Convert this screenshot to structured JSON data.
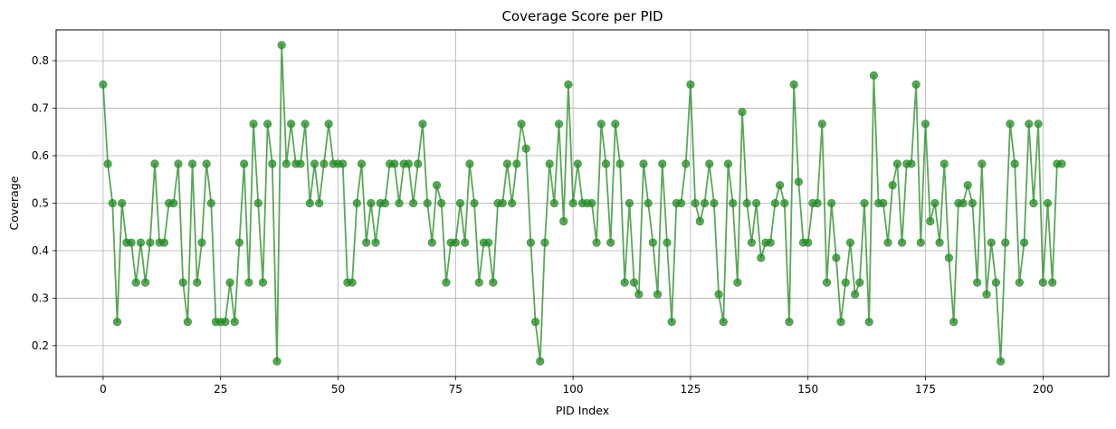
{
  "chart_data": {
    "type": "line",
    "title": "Coverage Score per PID",
    "xlabel": "PID Index",
    "ylabel": "Coverage",
    "xlim": [
      -10,
      214
    ],
    "ylim": [
      0.135,
      0.865
    ],
    "xticks": [
      0,
      25,
      50,
      75,
      100,
      125,
      150,
      175,
      200
    ],
    "yticks": [
      0.2,
      0.3,
      0.4,
      0.5,
      0.6,
      0.7,
      0.8
    ],
    "xtick_labels": [
      "0",
      "25",
      "50",
      "75",
      "100",
      "125",
      "150",
      "175",
      "200"
    ],
    "ytick_labels": [
      "0.2",
      "0.3",
      "0.4",
      "0.5",
      "0.6",
      "0.7",
      "0.8"
    ],
    "grid": true,
    "color": "#228B22",
    "markers": true,
    "x_start": 0,
    "values": [
      0.75,
      0.583,
      0.5,
      0.25,
      0.5,
      0.417,
      0.417,
      0.333,
      0.417,
      0.333,
      0.417,
      0.583,
      0.417,
      0.417,
      0.5,
      0.5,
      0.583,
      0.333,
      0.25,
      0.583,
      0.333,
      0.417,
      0.583,
      0.5,
      0.25,
      0.25,
      0.25,
      0.333,
      0.25,
      0.417,
      0.583,
      0.333,
      0.667,
      0.5,
      0.333,
      0.667,
      0.583,
      0.167,
      0.833,
      0.583,
      0.667,
      0.583,
      0.583,
      0.667,
      0.5,
      0.583,
      0.5,
      0.583,
      0.667,
      0.583,
      0.583,
      0.583,
      0.333,
      0.333,
      0.5,
      0.583,
      0.417,
      0.5,
      0.417,
      0.5,
      0.5,
      0.583,
      0.583,
      0.5,
      0.583,
      0.583,
      0.5,
      0.583,
      0.667,
      0.5,
      0.417,
      0.538,
      0.5,
      0.333,
      0.417,
      0.417,
      0.5,
      0.417,
      0.583,
      0.5,
      0.333,
      0.417,
      0.417,
      0.333,
      0.5,
      0.5,
      0.583,
      0.5,
      0.583,
      0.667,
      0.615,
      0.417,
      0.25,
      0.167,
      0.417,
      0.583,
      0.5,
      0.667,
      0.462,
      0.75,
      0.5,
      0.583,
      0.5,
      0.5,
      0.5,
      0.417,
      0.667,
      0.583,
      0.417,
      0.667,
      0.583,
      0.333,
      0.5,
      0.333,
      0.308,
      0.583,
      0.5,
      0.417,
      0.308,
      0.583,
      0.417,
      0.25,
      0.5,
      0.5,
      0.583,
      0.75,
      0.5,
      0.462,
      0.5,
      0.583,
      0.5,
      0.308,
      0.25,
      0.583,
      0.5,
      0.333,
      0.692,
      0.5,
      0.417,
      0.5,
      0.385,
      0.417,
      0.417,
      0.5,
      0.538,
      0.5,
      0.25,
      0.75,
      0.545,
      0.417,
      0.417,
      0.5,
      0.5,
      0.667,
      0.333,
      0.5,
      0.385,
      0.25,
      0.333,
      0.417,
      0.308,
      0.333,
      0.5,
      0.25,
      0.769,
      0.5,
      0.5,
      0.417,
      0.538,
      0.583,
      0.417,
      0.583,
      0.583,
      0.75,
      0.417,
      0.667,
      0.462,
      0.5,
      0.417,
      0.583,
      0.385,
      0.25,
      0.5,
      0.5,
      0.538,
      0.5,
      0.333,
      0.583,
      0.308,
      0.417,
      0.333,
      0.167,
      0.417,
      0.667,
      0.583,
      0.333,
      0.417,
      0.667,
      0.5,
      0.667,
      0.333,
      0.5,
      0.333,
      0.583,
      0.583
    ]
  }
}
